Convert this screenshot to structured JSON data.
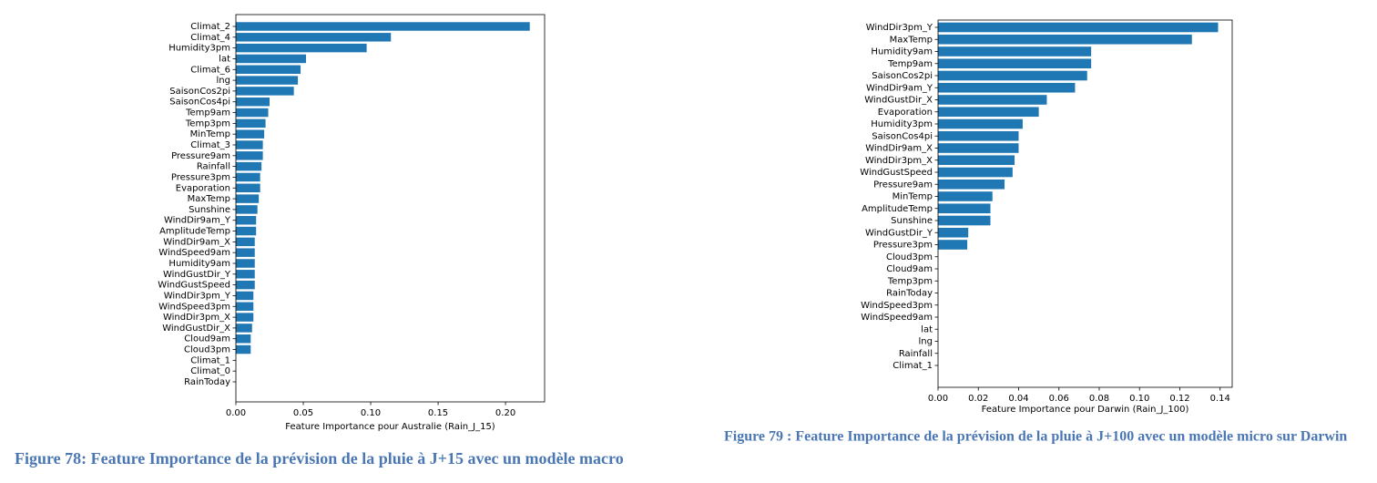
{
  "chart_data": [
    {
      "type": "barh",
      "xlabel": "Feature Importance pour Australie (Rain_J_15)",
      "categories": [
        "Climat_2",
        "Climat_4",
        "Humidity3pm",
        "lat",
        "Climat_6",
        "lng",
        "SaisonCos2pi",
        "SaisonCos4pi",
        "Temp9am",
        "Temp3pm",
        "MinTemp",
        "Climat_3",
        "Pressure9am",
        "Rainfall",
        "Pressure3pm",
        "Evaporation",
        "MaxTemp",
        "Sunshine",
        "WindDir9am_Y",
        "AmplitudeTemp",
        "WindDir9am_X",
        "WindSpeed9am",
        "Humidity9am",
        "WindGustDir_Y",
        "WindGustSpeed",
        "WindDir3pm_Y",
        "WindSpeed3pm",
        "WindDir3pm_X",
        "WindGustDir_X",
        "Cloud9am",
        "Cloud3pm",
        "Climat_1",
        "Climat_0",
        "RainToday"
      ],
      "values": [
        0.218,
        0.115,
        0.097,
        0.052,
        0.048,
        0.046,
        0.043,
        0.025,
        0.024,
        0.022,
        0.021,
        0.02,
        0.02,
        0.019,
        0.018,
        0.018,
        0.017,
        0.016,
        0.015,
        0.015,
        0.014,
        0.014,
        0.014,
        0.014,
        0.014,
        0.013,
        0.013,
        0.013,
        0.012,
        0.011,
        0.011,
        0,
        0,
        0
      ],
      "color": "#1f77b4",
      "xlim": [
        0,
        0.229
      ],
      "xticks": [
        {
          "value": 0,
          "label": "0.00"
        },
        {
          "value": 0.05,
          "label": "0.05"
        },
        {
          "value": 0.1,
          "label": "0.10"
        },
        {
          "value": 0.15,
          "label": "0.15"
        },
        {
          "value": 0.2,
          "label": "0.20"
        }
      ],
      "caption": "Figure 78: Feature Importance de la prévision de la pluie à J+15 avec un modèle macro"
    },
    {
      "type": "barh",
      "xlabel": "Feature Importance pour Darwin (Rain_J_100)",
      "categories": [
        "WindDir3pm_Y",
        "MaxTemp",
        "Humidity9am",
        "Temp9am",
        "SaisonCos2pi",
        "WindDir9am_Y",
        "WindGustDir_X",
        "Evaporation",
        "Humidity3pm",
        "SaisonCos4pi",
        "WindDir9am_X",
        "WindDir3pm_X",
        "WindGustSpeed",
        "Pressure9am",
        "MinTemp",
        "AmplitudeTemp",
        "Sunshine",
        "WindGustDir_Y",
        "Pressure3pm",
        "Cloud3pm",
        "Cloud9am",
        "Temp3pm",
        "RainToday",
        "WindSpeed3pm",
        "WindSpeed9am",
        "lat",
        "lng",
        "Rainfall",
        "Climat_1"
      ],
      "values": [
        0.139,
        0.126,
        0.076,
        0.076,
        0.074,
        0.068,
        0.054,
        0.05,
        0.042,
        0.04,
        0.04,
        0.038,
        0.037,
        0.033,
        0.027,
        0.026,
        0.026,
        0.015,
        0.0145,
        0,
        0,
        0,
        0,
        0,
        0,
        0,
        0,
        0,
        0
      ],
      "color": "#1f77b4",
      "xlim": [
        0,
        0.146
      ],
      "xticks": [
        {
          "value": 0,
          "label": "0.00"
        },
        {
          "value": 0.02,
          "label": "0.02"
        },
        {
          "value": 0.04,
          "label": "0.04"
        },
        {
          "value": 0.06,
          "label": "0.06"
        },
        {
          "value": 0.08,
          "label": "0.08"
        },
        {
          "value": 0.1,
          "label": "0.10"
        },
        {
          "value": 0.12,
          "label": "0.12"
        },
        {
          "value": 0.14,
          "label": "0.14"
        }
      ],
      "caption": "Figure 79 : Feature Importance de la prévision de la pluie à J+100 avec un modèle micro sur Darwin"
    }
  ]
}
